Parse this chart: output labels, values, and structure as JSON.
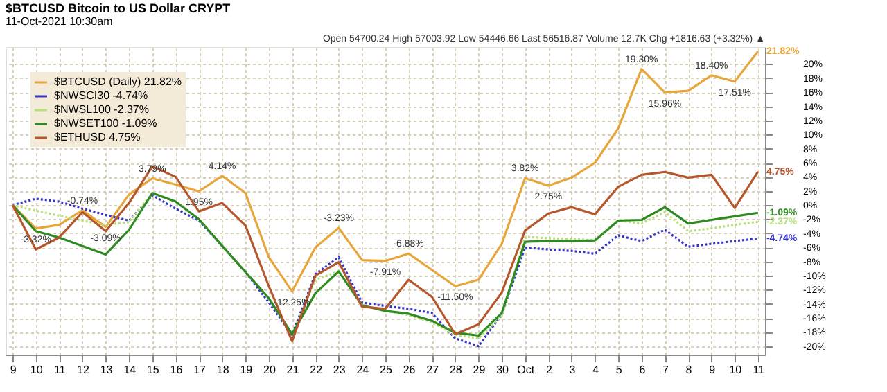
{
  "chart_data": {
    "type": "line",
    "title": "$BTCUSD Bitcoin to US Dollar CRYPT",
    "subtitle": "11-Oct-2021 10:30am",
    "categories": [
      "9",
      "10",
      "11",
      "12",
      "13",
      "14",
      "15",
      "16",
      "17",
      "18",
      "19",
      "20",
      "21",
      "22",
      "23",
      "24",
      "25",
      "26",
      "27",
      "28",
      "29",
      "30",
      "Oct",
      "2",
      "3",
      "4",
      "5",
      "6",
      "7",
      "8",
      "9",
      "10",
      "11"
    ],
    "series": [
      {
        "name": "$BTCUSD (Daily) 21.82%",
        "color": "#e8a63a",
        "line_style": "solid",
        "values": [
          0,
          -3.32,
          -2.8,
          -0.74,
          -3.09,
          1.5,
          3.79,
          2.9,
          1.95,
          4.14,
          1.7,
          -7.4,
          -12.25,
          -6.0,
          -3.23,
          -7.8,
          -7.91,
          -6.88,
          -9.2,
          -11.5,
          -10.6,
          -5.5,
          3.82,
          2.75,
          3.9,
          6.0,
          10.9,
          19.3,
          15.96,
          16.2,
          18.4,
          17.51,
          21.82
        ],
        "value_labels": [
          null,
          "-3.32%",
          null,
          "-0.74%",
          "-3.09%",
          null,
          "3.79%",
          null,
          "1.95%",
          "4.14%",
          null,
          null,
          "-12.25%",
          null,
          "-3.23%",
          null,
          "-7.91%",
          "-6.88%",
          null,
          "-11.50%",
          null,
          null,
          "3.82%",
          "2.75%",
          null,
          null,
          null,
          "19.30%",
          "15.96%",
          null,
          "18.40%",
          "17.51%",
          "21.82%"
        ]
      },
      {
        "name": "$NWSCI30 -4.74%",
        "color": "#3535cc",
        "line_style": "dotted",
        "values": [
          0,
          0.9,
          0.5,
          -0.5,
          -1.4,
          -2.2,
          1.4,
          -0.5,
          -2.2,
          -5.8,
          -9.5,
          -13.8,
          -18.4,
          -9.8,
          -7.4,
          -13.8,
          -14.3,
          -14.7,
          -15.3,
          -18.9,
          -20.0,
          -15.5,
          -6.0,
          -6.3,
          -6.5,
          -6.9,
          -4.3,
          -5.1,
          -3.5,
          -5.9,
          -5.5,
          -5.1,
          -4.74
        ],
        "value_labels": [
          null,
          null,
          null,
          null,
          null,
          null,
          null,
          null,
          null,
          null,
          null,
          null,
          null,
          null,
          null,
          null,
          null,
          null,
          null,
          null,
          null,
          null,
          null,
          null,
          null,
          null,
          null,
          null,
          null,
          null,
          null,
          null,
          "-4.74%"
        ]
      },
      {
        "name": "$NWSL100 -2.37%",
        "color": "#b5e07a",
        "line_style": "dotted",
        "values": [
          0,
          -0.8,
          -1.5,
          -2.2,
          -2.8,
          -2.4,
          1.7,
          0.5,
          -2.0,
          -5.8,
          -9.5,
          -13.2,
          -18.3,
          -10.6,
          -9.4,
          -14.2,
          -15.0,
          -15.6,
          -16.6,
          -18.4,
          -18.9,
          -15.8,
          -4.5,
          -4.7,
          -4.8,
          -5.0,
          -2.2,
          -2.6,
          -1.0,
          -3.7,
          -3.3,
          -2.8,
          -2.37
        ],
        "value_labels": [
          null,
          null,
          null,
          null,
          null,
          null,
          null,
          null,
          null,
          null,
          null,
          null,
          null,
          null,
          null,
          null,
          null,
          null,
          null,
          null,
          null,
          null,
          null,
          null,
          null,
          null,
          null,
          null,
          null,
          null,
          null,
          null,
          "-2.37%"
        ]
      },
      {
        "name": "$NWSET100 -1.09%",
        "color": "#2e8b22",
        "line_style": "solid",
        "values": [
          0,
          -3.7,
          -4.6,
          -5.8,
          -7.0,
          -3.5,
          1.7,
          0.5,
          -2.0,
          -5.8,
          -9.5,
          -13.2,
          -18.3,
          -12.5,
          -9.4,
          -14.2,
          -15.0,
          -15.4,
          -16.4,
          -18.1,
          -18.5,
          -15.3,
          -5.2,
          -5.1,
          -5.1,
          -5.0,
          -2.2,
          -2.1,
          -0.3,
          -2.6,
          -2.1,
          -1.6,
          -1.09
        ],
        "value_labels": [
          null,
          null,
          null,
          null,
          null,
          null,
          null,
          null,
          null,
          null,
          null,
          null,
          null,
          null,
          null,
          null,
          null,
          null,
          null,
          null,
          null,
          null,
          null,
          null,
          null,
          null,
          null,
          null,
          null,
          null,
          null,
          null,
          "-1.09%"
        ]
      },
      {
        "name": "$ETHUSD 4.75%",
        "color": "#b5562b",
        "line_style": "solid",
        "values": [
          0,
          -6.3,
          -4.6,
          -1.0,
          -3.7,
          0.3,
          5.5,
          4.0,
          -0.9,
          0.3,
          -2.9,
          -11.5,
          -19.3,
          -10.0,
          -8.1,
          -14.4,
          -14.7,
          -10.6,
          -13.0,
          -18.3,
          -16.9,
          -12.4,
          -3.6,
          -1.2,
          -0.3,
          -1.3,
          2.6,
          4.3,
          4.7,
          3.9,
          4.3,
          -0.4,
          4.75
        ],
        "value_labels": [
          null,
          null,
          null,
          null,
          null,
          null,
          null,
          null,
          null,
          null,
          null,
          null,
          null,
          null,
          null,
          null,
          null,
          null,
          null,
          null,
          null,
          null,
          null,
          null,
          null,
          null,
          null,
          null,
          null,
          null,
          null,
          null,
          "4.75%"
        ]
      }
    ],
    "ylim": [
      -21.2,
      22.4
    ],
    "yticks": [
      {
        "value": -20,
        "label": "-20%"
      },
      {
        "value": -18,
        "label": "-18%"
      },
      {
        "value": -16,
        "label": "-16%"
      },
      {
        "value": -14,
        "label": "-14%"
      },
      {
        "value": -12,
        "label": "-12%"
      },
      {
        "value": -10,
        "label": "-10%"
      },
      {
        "value": -8,
        "label": "-8%"
      },
      {
        "value": -6,
        "label": "-6%"
      },
      {
        "value": -4,
        "label": "-4%"
      },
      {
        "value": -2,
        "label": "-2%"
      },
      {
        "value": 0,
        "label": "0%"
      },
      {
        "value": 2,
        "label": "2%"
      },
      {
        "value": 4,
        "label": "4%"
      },
      {
        "value": 6,
        "label": "6%"
      },
      {
        "value": 8,
        "label": "8%"
      },
      {
        "value": 10,
        "label": "10%"
      },
      {
        "value": 12,
        "label": "12%"
      },
      {
        "value": 14,
        "label": "14%"
      },
      {
        "value": 16,
        "label": "16%"
      },
      {
        "value": 18,
        "label": "18%"
      },
      {
        "value": 20,
        "label": "20%"
      }
    ],
    "grid": true,
    "legend": "top left",
    "marker": "none",
    "annotations": [
      "Open 54700.24 High 57003.92 Low 54446.66 Last 56516.87 Volume 12.7K Chg +1816.63 (+3.32%) ▲"
    ]
  }
}
